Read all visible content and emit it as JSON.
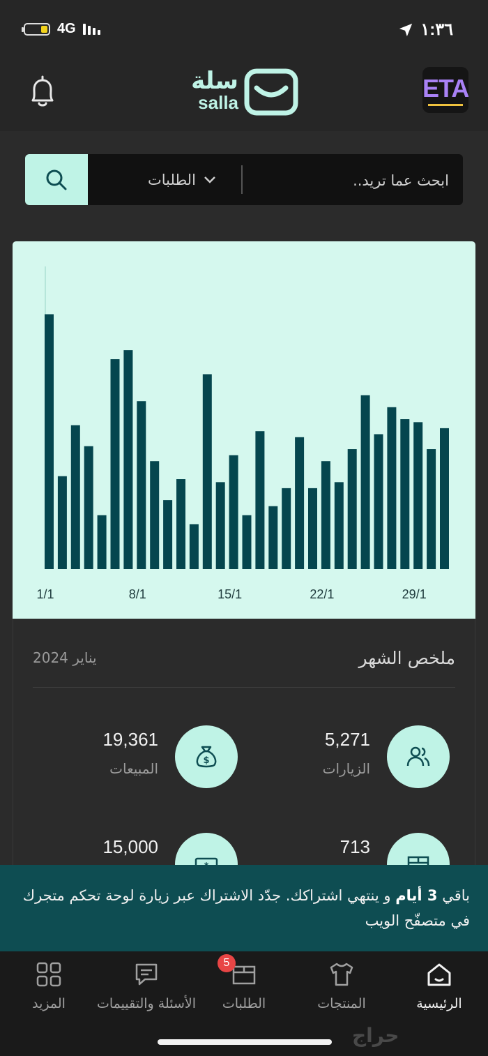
{
  "status": {
    "network": "4G",
    "time": "١:٣٦"
  },
  "header": {
    "logo_ar": "سلة",
    "logo_en": "salla",
    "store_avatar_text": "ETA"
  },
  "search": {
    "placeholder": "ابحث عما تريد..",
    "filter_label": "الطلبات"
  },
  "chart_data": {
    "type": "bar",
    "x_tick_labels": [
      "1/1",
      "8/1",
      "15/1",
      "22/1",
      "29/1"
    ],
    "categories": [
      "1/1",
      "2/1",
      "3/1",
      "4/1",
      "5/1",
      "6/1",
      "7/1",
      "8/1",
      "9/1",
      "10/1",
      "11/1",
      "12/1",
      "13/1",
      "14/1",
      "15/1",
      "16/1",
      "17/1",
      "18/1",
      "19/1",
      "20/1",
      "21/1",
      "22/1",
      "23/1",
      "24/1",
      "25/1",
      "26/1",
      "27/1",
      "28/1",
      "29/1",
      "30/1",
      "31/1"
    ],
    "values": [
      85,
      31,
      48,
      41,
      18,
      70,
      73,
      56,
      36,
      23,
      30,
      15,
      65,
      29,
      38,
      18,
      46,
      21,
      27,
      44,
      27,
      36,
      29,
      40,
      58,
      45,
      54,
      50,
      49,
      40,
      47
    ],
    "ylim": [
      0,
      100
    ],
    "colors": {
      "bar": "#05464e",
      "background": "#d5f8ee"
    }
  },
  "summary": {
    "title": "ملخص الشهر",
    "date": "يناير 2024",
    "stats": [
      {
        "icon": "people-icon",
        "value": "5,271",
        "label": "الزيارات"
      },
      {
        "icon": "money-bag-icon",
        "value": "19,361",
        "label": "المبيعات"
      },
      {
        "icon": "box-icon",
        "value": "713",
        "label": ""
      },
      {
        "icon": "ticket-icon",
        "value": "15,000",
        "label": ""
      }
    ]
  },
  "banner": {
    "part1": "باقي ",
    "bold": "3 أيام",
    "part2": " و ينتهي اشتراكك. جدّد الاشتراك عبر زيارة لوحة تحكم متجرك في متصفّح الويب"
  },
  "tabs": [
    {
      "label": "الرئيسية",
      "icon": "home-icon",
      "active": true
    },
    {
      "label": "المنتجات",
      "icon": "shirt-icon"
    },
    {
      "label": "الطلبات",
      "icon": "orders-box-icon",
      "badge": "5"
    },
    {
      "label": "الأسئلة والتقييمات",
      "icon": "chat-icon"
    },
    {
      "label": "المزيد",
      "icon": "grid-icon"
    }
  ],
  "watermark": "حراج",
  "colors": {
    "accent": "#bff3e6",
    "banner": "#0e4d52",
    "badge": "#e84545"
  }
}
